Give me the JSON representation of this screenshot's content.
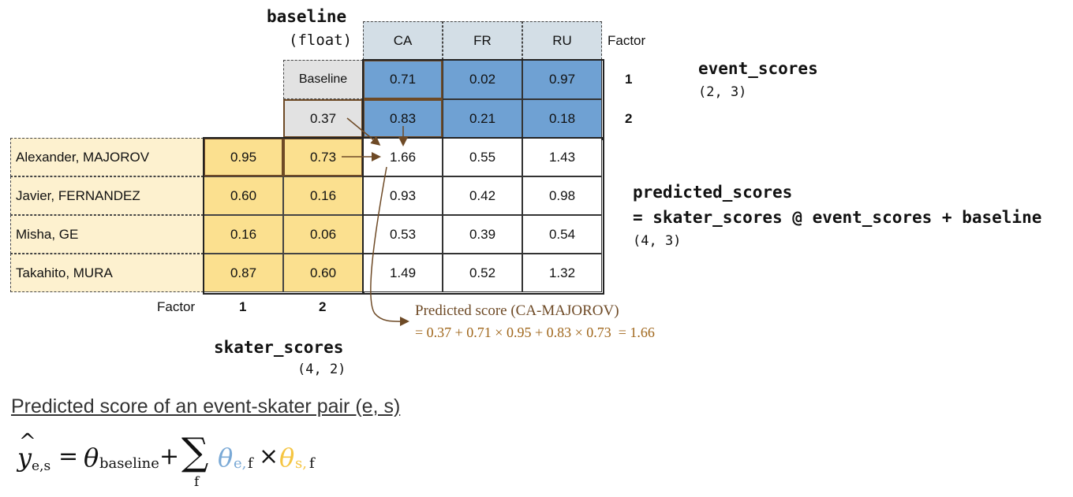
{
  "baseline": {
    "title": "baseline",
    "type_label": "(float)",
    "header": "Baseline",
    "value": "0.37"
  },
  "event_scores": {
    "title": "event_scores",
    "shape": "(2, 3)",
    "columns": [
      "CA",
      "FR",
      "RU"
    ],
    "factor_label": "Factor",
    "factors": [
      "1",
      "2"
    ],
    "rows": [
      [
        "0.71",
        "0.02",
        "0.97"
      ],
      [
        "0.83",
        "0.21",
        "0.18"
      ]
    ]
  },
  "skater_scores": {
    "title": "skater_scores",
    "shape": "(4, 2)",
    "factor_label": "Factor",
    "factors": [
      "1",
      "2"
    ],
    "names": [
      "Alexander, MAJOROV",
      "Javier, FERNANDEZ",
      "Misha, GE",
      "Takahito, MURA"
    ],
    "rows": [
      [
        "0.95",
        "0.73"
      ],
      [
        "0.60",
        "0.16"
      ],
      [
        "0.16",
        "0.06"
      ],
      [
        "0.87",
        "0.60"
      ]
    ]
  },
  "predicted_scores": {
    "title": "predicted_scores",
    "formula": "= skater_scores @ event_scores + baseline",
    "shape": "(4, 3)",
    "rows": [
      [
        "1.66",
        "0.55",
        "1.43"
      ],
      [
        "0.93",
        "0.42",
        "0.98"
      ],
      [
        "0.53",
        "0.39",
        "0.54"
      ],
      [
        "1.49",
        "0.52",
        "1.32"
      ]
    ]
  },
  "annotation": {
    "title": "Predicted score (CA-MAJOROV)",
    "formula": "= 0.37 + 0.71 × 0.95 + 0.83 × 0.73  = 1.66"
  },
  "footer": {
    "heading": "Predicted score of an event-skater pair (e, s)"
  },
  "colors": {
    "event_header": "#d3dee6",
    "event_blue": "#6fa1d3",
    "skater_yellow": "#fbe08f",
    "names_bg": "#fdf1cf",
    "baseline_bg": "#e2e2e2",
    "arrow_brown": "#6e4a26",
    "math_blue": "#7aa9d6",
    "math_yellow": "#f5c542"
  }
}
